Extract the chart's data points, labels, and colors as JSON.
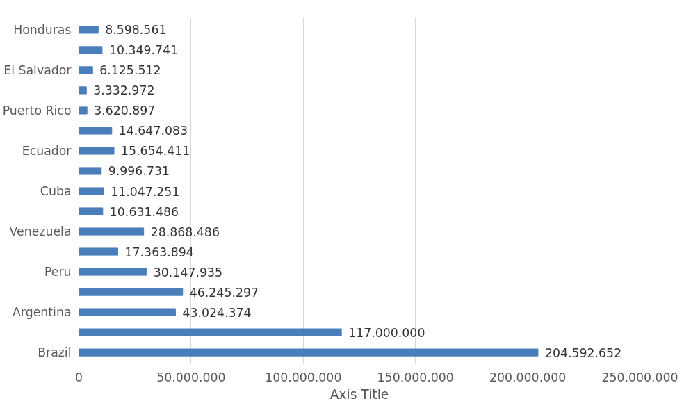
{
  "chart_data": {
    "type": "bar",
    "orientation": "horizontal",
    "xlabel": "Axis Title",
    "categories": [
      "Honduras",
      null,
      "El Salvador",
      null,
      "Puerto Rico",
      null,
      "Ecuador",
      null,
      "Cuba",
      null,
      "Venezuela",
      null,
      "Peru",
      null,
      "Argentina",
      null,
      "Brazil"
    ],
    "values": [
      8598561,
      10349741,
      6125512,
      3332972,
      3620897,
      14647083,
      15654411,
      9996731,
      11047251,
      10631486,
      28868486,
      17363894,
      30147935,
      46245297,
      43024374,
      117000000,
      204592652
    ],
    "value_labels": [
      "8.598.561",
      "10.349.741",
      "6.125.512",
      "3.332.972",
      "3.620.897",
      "14.647.083",
      "15.654.411",
      "9.996.731",
      "11.047.251",
      "10.631.486",
      "28.868.486",
      "17.363.894",
      "30.147.935",
      "46.245.297",
      "43.024.374",
      "117.000.000",
      "204.592.652"
    ],
    "color": "#4a7ebb",
    "xlim": [
      0,
      250000000
    ],
    "xticks": [
      0,
      {
        "value": 50000000,
        "label": "50.000.000"
      },
      {
        "value": 100000000,
        "label": "100.000.000"
      },
      {
        "value": 150000000,
        "label": "150.000.000"
      },
      {
        "value": 200000000,
        "label": "200.000.000"
      },
      {
        "value": 250000000,
        "label": "250.000.000"
      }
    ],
    "grid": "x"
  }
}
